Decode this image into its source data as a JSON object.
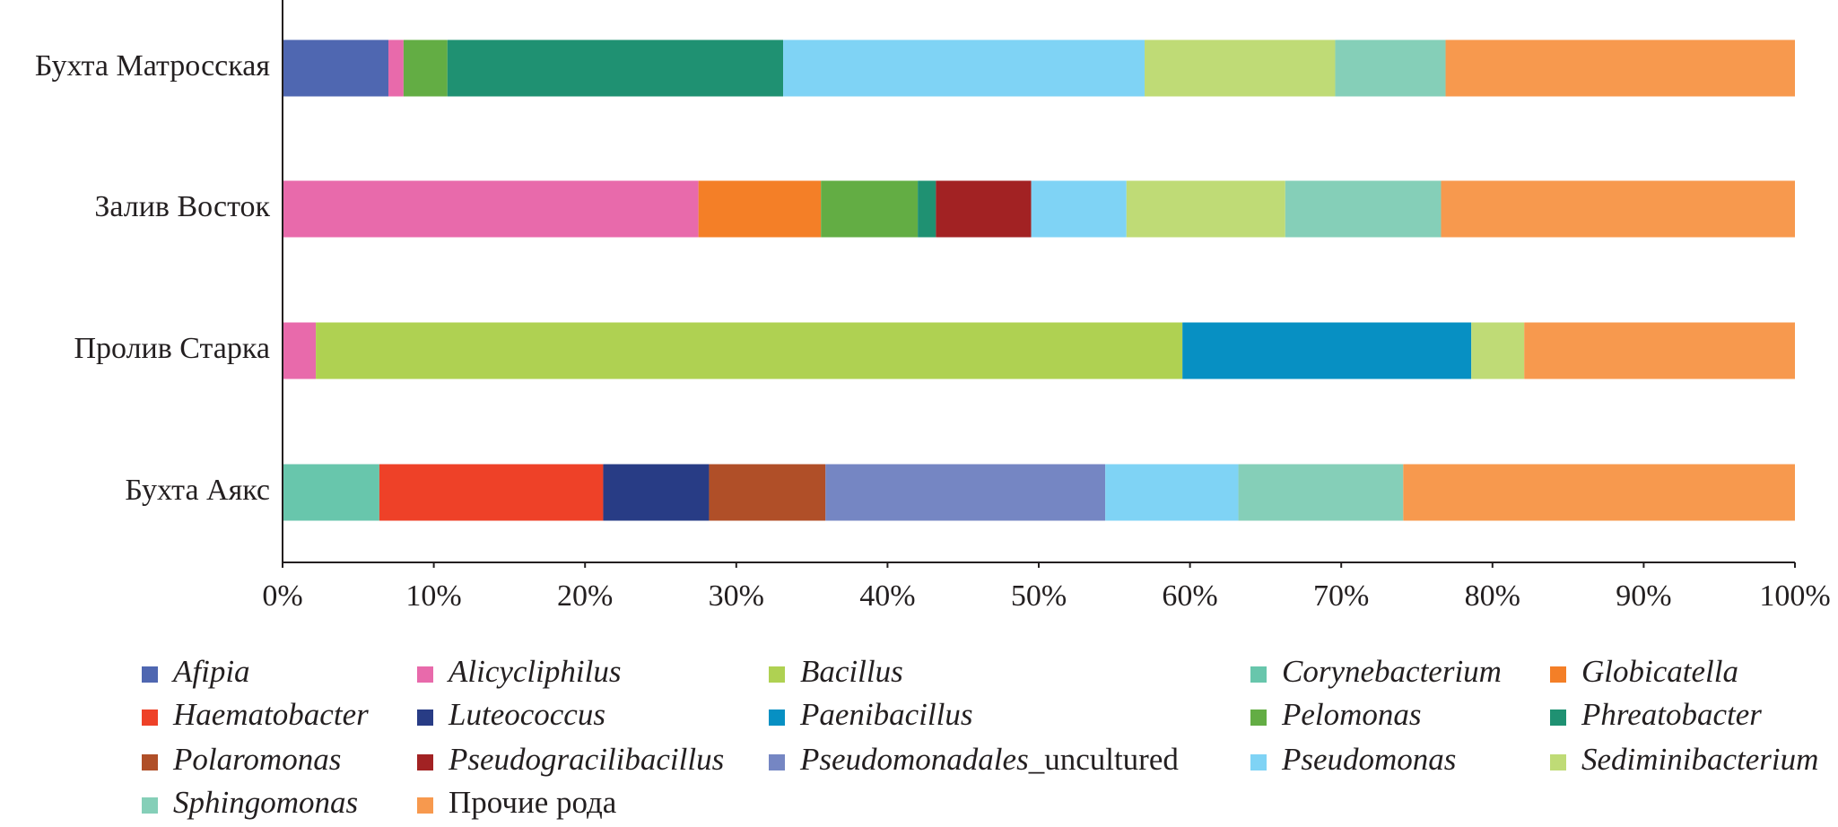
{
  "chart_data": {
    "type": "stacked_barh",
    "categories": [
      "Бухта Матросская",
      "Залив Восток",
      "Пролив Старка",
      "Бухта Аякс"
    ],
    "xlim": [
      0,
      100
    ],
    "xticks": [
      {
        "value": 0,
        "label": "0%"
      },
      {
        "value": 10,
        "label": "10%"
      },
      {
        "value": 20,
        "label": "20%"
      },
      {
        "value": 30,
        "label": "30%"
      },
      {
        "value": 40,
        "label": "40%"
      },
      {
        "value": 50,
        "label": "50%"
      },
      {
        "value": 60,
        "label": "60%"
      },
      {
        "value": 70,
        "label": "70%"
      },
      {
        "value": 80,
        "label": "80%"
      },
      {
        "value": 90,
        "label": "90%"
      },
      {
        "value": 100,
        "label": "100%"
      }
    ],
    "series": [
      {
        "name": "Afipia",
        "color": "#4f67b1",
        "values": [
          7.0,
          0,
          0,
          0
        ]
      },
      {
        "name": "Alicycliphilus",
        "color": "#e86aab",
        "values": [
          1.0,
          27.5,
          2.2,
          0
        ]
      },
      {
        "name": "Bacillus",
        "color": "#afd152",
        "values": [
          0,
          0,
          57.3,
          0
        ]
      },
      {
        "name": "Corynebacterium",
        "color": "#68c6ac",
        "values": [
          0,
          0,
          0,
          6.4
        ]
      },
      {
        "name": "Globicatella",
        "color": "#f47f27",
        "values": [
          0,
          8.1,
          0,
          0
        ]
      },
      {
        "name": "Haematobacter",
        "color": "#ee4128",
        "values": [
          0,
          0,
          0,
          14.8
        ]
      },
      {
        "name": "Luteococcus",
        "color": "#283c85",
        "values": [
          0,
          0,
          0,
          7.0
        ]
      },
      {
        "name": "Paenibacillus",
        "color": "#0790c3",
        "values": [
          0,
          0,
          19.1,
          0
        ]
      },
      {
        "name": "Pelomonas",
        "color": "#63ad44",
        "values": [
          2.9,
          6.4,
          0,
          0
        ]
      },
      {
        "name": "Phreatobacter",
        "color": "#1f9172",
        "values": [
          22.2,
          1.2,
          0,
          0
        ]
      },
      {
        "name": "Polaromonas",
        "color": "#b04f28",
        "values": [
          0,
          0,
          0,
          7.7
        ]
      },
      {
        "name": "Pseudogracilibacillus",
        "color": "#a22223",
        "values": [
          0,
          6.3,
          0,
          0
        ]
      },
      {
        "name": "Pseudomonadales_uncultured",
        "color": "#7586c3",
        "values": [
          0,
          0,
          0,
          18.5
        ]
      },
      {
        "name": "Pseudomonas",
        "color": "#7fd3f5",
        "values": [
          23.9,
          6.3,
          0,
          8.8
        ]
      },
      {
        "name": "Sediminibacterium",
        "color": "#bfdb76",
        "values": [
          12.6,
          10.5,
          3.5,
          0
        ]
      },
      {
        "name": "Sphingomonas",
        "color": "#85cfb8",
        "values": [
          7.3,
          10.3,
          0,
          10.9
        ]
      },
      {
        "name": "Прочие рода",
        "color": "#f7994e",
        "values": [
          23.1,
          23.4,
          17.9,
          25.9
        ]
      }
    ]
  }
}
